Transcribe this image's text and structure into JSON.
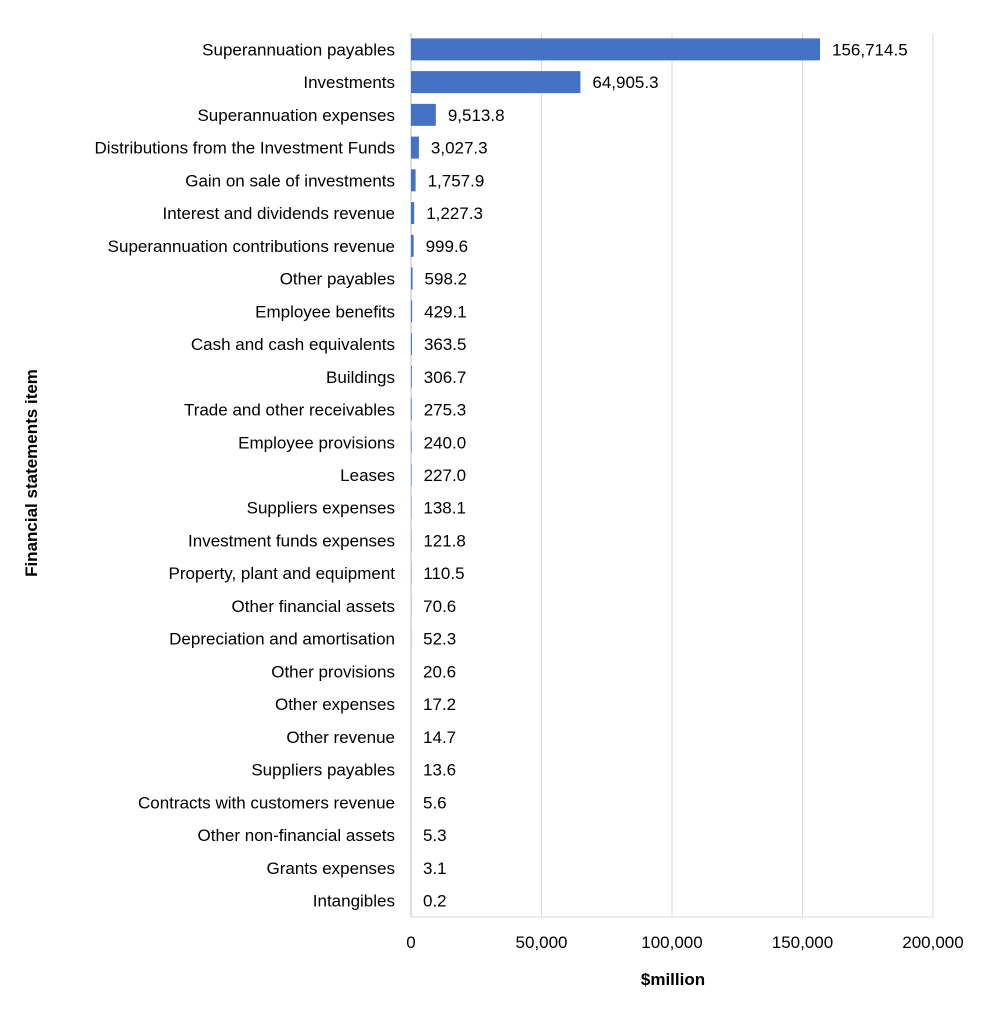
{
  "chart_data": {
    "type": "bar",
    "orientation": "horizontal",
    "categories": [
      "Superannuation payables",
      "Investments",
      "Superannuation expenses",
      "Distributions from the Investment Funds",
      "Gain on sale of investments",
      "Interest and dividends revenue",
      "Superannuation contributions revenue",
      "Other payables",
      "Employee benefits",
      "Cash and cash equivalents",
      "Buildings",
      "Trade and other receivables",
      "Employee provisions",
      "Leases",
      "Suppliers expenses",
      "Investment funds expenses",
      "Property, plant and equipment",
      "Other financial assets",
      "Depreciation and amortisation",
      "Other provisions",
      "Other expenses",
      "Other revenue",
      "Suppliers payables",
      "Contracts with customers revenue",
      "Other non-financial assets",
      "Grants expenses",
      "Intangibles"
    ],
    "values": [
      156714.5,
      64905.3,
      9513.8,
      3027.3,
      1757.9,
      1227.3,
      999.6,
      598.2,
      429.1,
      363.5,
      306.7,
      275.3,
      240.0,
      227.0,
      138.1,
      121.8,
      110.5,
      70.6,
      52.3,
      20.6,
      17.2,
      14.7,
      13.6,
      5.6,
      5.3,
      3.1,
      0.2
    ],
    "value_labels": [
      "156,714.5",
      "64,905.3",
      "9,513.8",
      "3,027.3",
      "1,757.9",
      "1,227.3",
      "999.6",
      "598.2",
      "429.1",
      "363.5",
      "306.7",
      "275.3",
      "240.0",
      "227.0",
      "138.1",
      "121.8",
      "110.5",
      "70.6",
      "52.3",
      "20.6",
      "17.2",
      "14.7",
      "13.6",
      "5.6",
      "5.3",
      "3.1",
      "0.2"
    ],
    "xlabel": "$million",
    "ylabel": "Financial statements item",
    "xlim": [
      0,
      200000
    ],
    "xticks": [
      0,
      50000,
      100000,
      150000,
      200000
    ],
    "xtick_labels": [
      "0",
      "50,000",
      "100,000",
      "150,000",
      "200,000"
    ],
    "grid": "vertical",
    "bar_color": "#4472C4",
    "grid_color": "#D9D9D9"
  }
}
